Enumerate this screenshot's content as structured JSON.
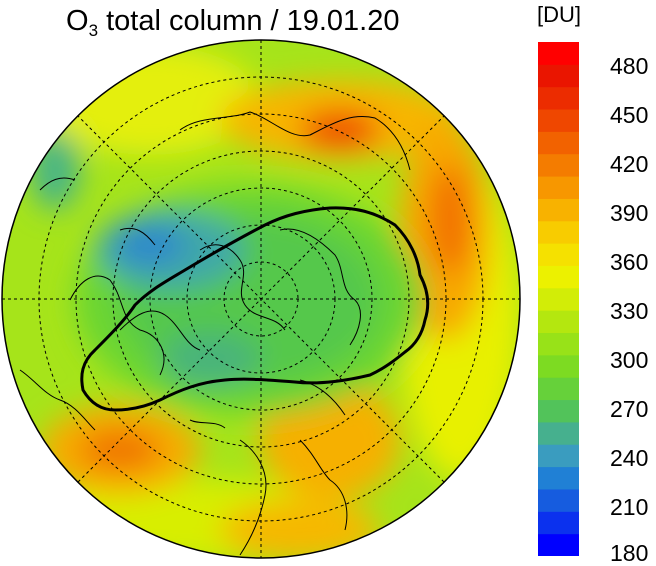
{
  "title": {
    "main": "O",
    "sub": "3",
    "rest": " total column / 19.01.20"
  },
  "colorbar": {
    "unit": "[DU]",
    "min": 180,
    "max": 495,
    "tick_labels": [
      "480",
      "450",
      "420",
      "390",
      "360",
      "330",
      "300",
      "270",
      "240",
      "210",
      "180"
    ],
    "colors": [
      "#0000ff",
      "#0b31ee",
      "#165cdf",
      "#2080d5",
      "#3a9cbf",
      "#46b08e",
      "#52c35a",
      "#66d13a",
      "#7ddb22",
      "#98e218",
      "#b4e70f",
      "#d2ed07",
      "#ecf100",
      "#f5e100",
      "#f8cc00",
      "#f8b200",
      "#f79700",
      "#f47c00",
      "#f26200",
      "#ef4700",
      "#ec2c00",
      "#ea1500",
      "#ff0000"
    ]
  }
}
